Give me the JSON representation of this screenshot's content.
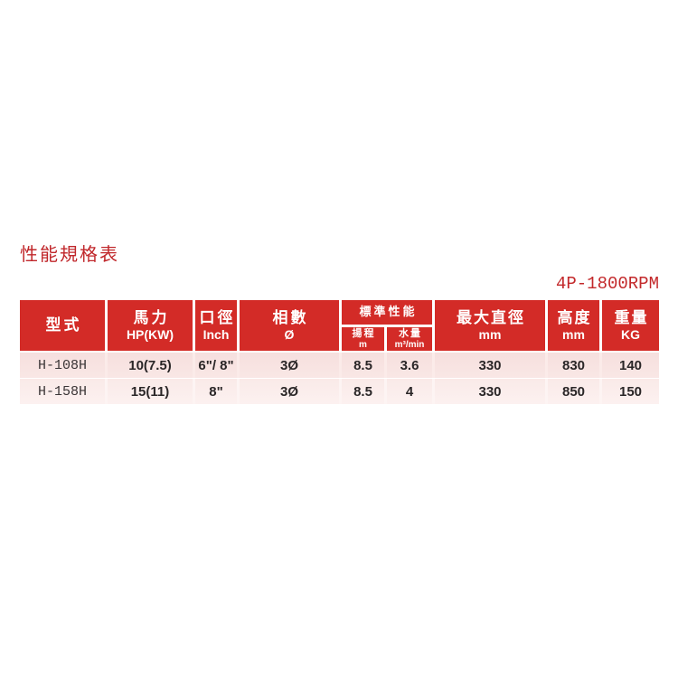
{
  "page": {
    "title": "性能規格表",
    "rpm_label": "4P-1800RPM"
  },
  "colors": {
    "accent_red": "#d32b27",
    "title_red": "#c0272b",
    "row_pink": "#f7e1e0",
    "row_pink_alt": "#fbece a",
    "header_text": "#ffffff",
    "body_text": "#2a2627"
  },
  "table": {
    "header": {
      "model": {
        "title": "型式",
        "sub": ""
      },
      "power": {
        "title": "馬力",
        "sub": "HP(KW)"
      },
      "bore": {
        "title": "口徑",
        "sub": "Inch"
      },
      "phase": {
        "title": "相數",
        "sub": "Ø"
      },
      "standard_performance": {
        "title": "標準性能"
      },
      "head": {
        "title": "揚程",
        "sub": "m"
      },
      "flow": {
        "title": "水量",
        "sub": "m³/min"
      },
      "max_diameter": {
        "title": "最大直徑",
        "sub": "mm"
      },
      "height": {
        "title": "高度",
        "sub": "mm"
      },
      "weight": {
        "title": "重量",
        "sub": "KG"
      }
    },
    "rows": [
      {
        "model": "H-108H",
        "power": "10(7.5)",
        "bore": "6\"/ 8\"",
        "phase": "3Ø",
        "head": "8.5",
        "flow": "3.6",
        "max_diameter": "330",
        "height": "830",
        "weight": "140"
      },
      {
        "model": "H-158H",
        "power": "15(11)",
        "bore": "8\"",
        "phase": "3Ø",
        "head": "8.5",
        "flow": "4",
        "max_diameter": "330",
        "height": "850",
        "weight": "150"
      }
    ]
  }
}
